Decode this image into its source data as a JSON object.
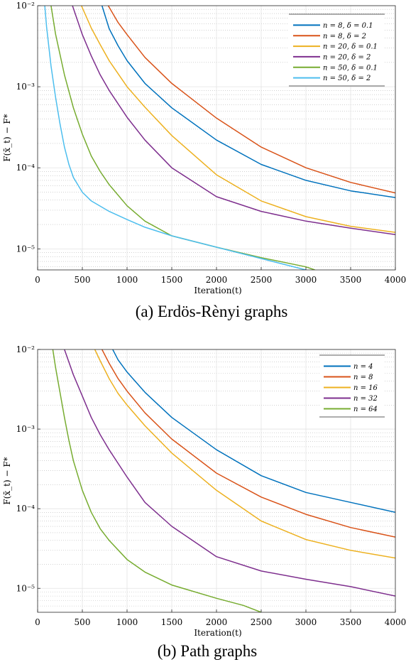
{
  "figure": {
    "captions": [
      "(a) Erdös-Rènyi graphs",
      "(b) Path graphs"
    ]
  },
  "chart_data": [
    {
      "type": "line",
      "caption": "(a) Erdös-Rènyi graphs",
      "xlabel": "Iteration(t)",
      "ylabel": "F(x̄_t) − F*",
      "xlim": [
        0,
        4000
      ],
      "ylim": [
        5.5e-06,
        0.01
      ],
      "yscale": "log",
      "xticks": [
        0,
        500,
        1000,
        1500,
        2000,
        2500,
        3000,
        3500,
        4000
      ],
      "ytick_labels": [
        "10-2",
        "10-3",
        "10-4",
        "10-5"
      ],
      "grid": true,
      "legend_position": "top-right",
      "series": [
        {
          "name": "n = 8, δ = 0.1",
          "color": "#0072BD",
          "x": [
            720,
            800,
            900,
            1000,
            1200,
            1500,
            2000,
            2500,
            3000,
            3500,
            4000
          ],
          "y": [
            0.01,
            0.0052,
            0.0032,
            0.0021,
            0.0011,
            0.00055,
            0.00022,
            0.00011,
            7e-05,
            5.2e-05,
            4.3e-05
          ]
        },
        {
          "name": "n = 8, δ = 2",
          "color": "#D95319",
          "x": [
            790,
            900,
            1000,
            1200,
            1500,
            2000,
            2500,
            3000,
            3500,
            4000
          ],
          "y": [
            0.01,
            0.0062,
            0.0044,
            0.0023,
            0.0011,
            0.00041,
            0.00018,
            0.0001,
            6.6e-05,
            4.9e-05
          ]
        },
        {
          "name": "n = 20, δ = 0.1",
          "color": "#EDB120",
          "x": [
            490,
            600,
            700,
            800,
            1000,
            1200,
            1500,
            2000,
            2500,
            3000,
            3500,
            4000
          ],
          "y": [
            0.01,
            0.0053,
            0.0033,
            0.0021,
            0.001,
            0.00056,
            0.00025,
            8.2e-05,
            3.9e-05,
            2.5e-05,
            1.9e-05,
            1.6e-05
          ]
        },
        {
          "name": "n = 20, δ = 2",
          "color": "#7E2F8E",
          "x": [
            390,
            500,
            600,
            700,
            800,
            1000,
            1200,
            1500,
            2000,
            2500,
            3000,
            3500,
            4000
          ],
          "y": [
            0.01,
            0.0044,
            0.0024,
            0.0014,
            0.0009,
            0.00042,
            0.00022,
            0.0001,
            4.4e-05,
            2.9e-05,
            2.2e-05,
            1.8e-05,
            1.5e-05
          ]
        },
        {
          "name": "n = 50, δ = 0.1",
          "color": "#77AC30",
          "x": [
            150,
            200,
            300,
            400,
            500,
            600,
            700,
            800,
            1000,
            1200,
            1500,
            2000,
            2500,
            3000,
            3100
          ],
          "y": [
            0.01,
            0.0045,
            0.0014,
            0.00055,
            0.00026,
            0.00014,
            9e-05,
            6.2e-05,
            3.4e-05,
            2.2e-05,
            1.45e-05,
            1.05e-05,
            7.8e-06,
            6e-06,
            5.5e-06
          ]
        },
        {
          "name": "n = 50, δ = 2",
          "color": "#4DBEEE",
          "x": [
            80,
            100,
            150,
            200,
            250,
            300,
            350,
            400,
            500,
            600,
            800,
            1000,
            1200,
            1500,
            2000,
            2500,
            3000
          ],
          "y": [
            0.01,
            0.0055,
            0.0018,
            0.00075,
            0.00035,
            0.00018,
            0.00011,
            7.6e-05,
            5e-05,
            3.9e-05,
            2.9e-05,
            2.3e-05,
            1.85e-05,
            1.45e-05,
            1.05e-05,
            7.6e-06,
            5.5e-06
          ]
        }
      ]
    },
    {
      "type": "line",
      "caption": "(b) Path graphs",
      "xlabel": "Iteration(t)",
      "ylabel": "F(x̄_t) − F*",
      "xlim": [
        0,
        4000
      ],
      "ylim": [
        5e-06,
        0.01
      ],
      "yscale": "log",
      "xticks": [
        0,
        500,
        1000,
        1500,
        2000,
        2500,
        3000,
        3500,
        4000
      ],
      "ytick_labels": [
        "10-2",
        "10-3",
        "10-4",
        "10-5"
      ],
      "grid": true,
      "legend_position": "top-right",
      "series": [
        {
          "name": "n = 4",
          "color": "#0072BD",
          "x": [
            840,
            900,
            1000,
            1200,
            1500,
            2000,
            2500,
            3000,
            3500,
            4000
          ],
          "y": [
            0.01,
            0.0074,
            0.0052,
            0.0029,
            0.0014,
            0.00055,
            0.00026,
            0.00016,
            0.00012,
            9e-05
          ]
        },
        {
          "name": "n = 8",
          "color": "#D95319",
          "x": [
            720,
            800,
            900,
            1000,
            1200,
            1500,
            2000,
            2500,
            3000,
            3500,
            4000
          ],
          "y": [
            0.01,
            0.0067,
            0.0043,
            0.003,
            0.0016,
            0.00075,
            0.00028,
            0.00014,
            8.5e-05,
            5.8e-05,
            4.4e-05
          ]
        },
        {
          "name": "n = 16",
          "color": "#EDB120",
          "x": [
            640,
            700,
            800,
            900,
            1000,
            1200,
            1500,
            2000,
            2500,
            3000,
            3500,
            4000
          ],
          "y": [
            0.01,
            0.0072,
            0.0043,
            0.0028,
            0.002,
            0.0011,
            0.0005,
            0.00017,
            7e-05,
            4.1e-05,
            3e-05,
            2.4e-05
          ]
        },
        {
          "name": "n = 32",
          "color": "#7E2F8E",
          "x": [
            300,
            400,
            500,
            600,
            700,
            800,
            1000,
            1200,
            1500,
            2000,
            2500,
            3000,
            3500,
            4000
          ],
          "y": [
            0.01,
            0.0048,
            0.0026,
            0.0014,
            0.00085,
            0.00055,
            0.00025,
            0.00012,
            6e-05,
            2.5e-05,
            1.65e-05,
            1.3e-05,
            1.05e-05,
            8e-06
          ]
        },
        {
          "name": "n = 64",
          "color": "#77AC30",
          "x": [
            170,
            200,
            250,
            300,
            350,
            400,
            500,
            600,
            700,
            800,
            1000,
            1200,
            1500,
            2000,
            2300,
            2500
          ],
          "y": [
            0.01,
            0.006,
            0.0029,
            0.0014,
            0.00072,
            0.0004,
            0.00017,
            9e-05,
            5.6e-05,
            4e-05,
            2.3e-05,
            1.6e-05,
            1.1e-05,
            7.5e-06,
            6.1e-06,
            5e-06
          ]
        }
      ]
    }
  ]
}
